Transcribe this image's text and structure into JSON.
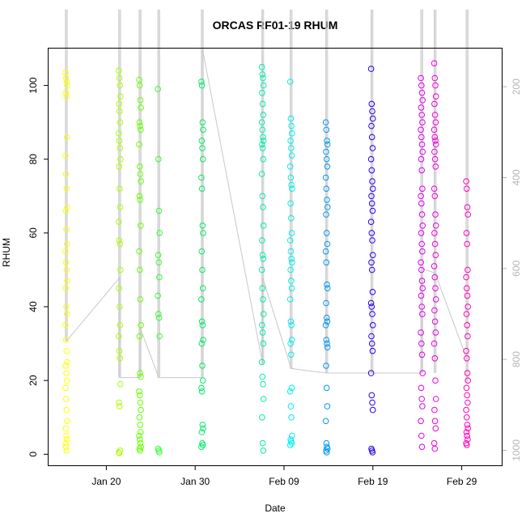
{
  "chart_data": {
    "type": "scatter",
    "title": "ORCAS RF01-19 RHUM",
    "xlabel": "Date",
    "ylabel": "RHUM",
    "ylim": [
      -3,
      110
    ],
    "y_ticks": [
      0,
      20,
      40,
      60,
      80,
      100
    ],
    "right_axis": {
      "ticks": [
        200,
        400,
        600,
        800,
        1000
      ],
      "range_top_to_bottom": [
        116,
        1033
      ],
      "line_color": "#c8c8c8"
    },
    "x_axis": {
      "range_days": [
        -6.5,
        44.5
      ],
      "ticks": [
        {
          "label": "Jan 20",
          "day": 0
        },
        {
          "label": "Jan 30",
          "day": 10
        },
        {
          "label": "Feb 09",
          "day": 20
        },
        {
          "label": "Feb 19",
          "day": 30
        },
        {
          "label": "Feb 29",
          "day": 40
        }
      ]
    },
    "series": [
      {
        "color": "#ffff00",
        "day": -4.5,
        "y": [
          103.5,
          102,
          101,
          100,
          98,
          97,
          86,
          81,
          76,
          72,
          67,
          66,
          61,
          57,
          55,
          52,
          50,
          47,
          45,
          40,
          38,
          35,
          31,
          28,
          25,
          24,
          22,
          20,
          18,
          15,
          12,
          9,
          7,
          5,
          4,
          3,
          2,
          1
        ],
        "press_top": 30,
        "press_bottom": 760
      },
      {
        "color": "#aaff00",
        "day": 1.5,
        "y": [
          104,
          102,
          100,
          97,
          95,
          93,
          90,
          87,
          85,
          83,
          80,
          78,
          72,
          67,
          63,
          58,
          57,
          50,
          45,
          40,
          35,
          32,
          28,
          26,
          19,
          14,
          13,
          1,
          0.5,
          0.3
        ],
        "press_top": 30,
        "press_bottom": 840
      },
      {
        "color": "#66ff00",
        "day": 3.8,
        "y": [
          101.5,
          100,
          96,
          94,
          90,
          89,
          88,
          84,
          78,
          76,
          74,
          70,
          69,
          62,
          55,
          50,
          42,
          35,
          32,
          22,
          21,
          17,
          16,
          14,
          12,
          10,
          8,
          6,
          5,
          4,
          3,
          2,
          1.5,
          1
        ],
        "press_top": 30,
        "press_bottom": 840
      },
      {
        "color": "#33ff33",
        "day": 5.9,
        "y": [
          99,
          80,
          66,
          60,
          54,
          52,
          48,
          43,
          38,
          37,
          32,
          1.5,
          1,
          0.5
        ],
        "press_top": 30,
        "press_bottom": 840
      },
      {
        "color": "#00ee66",
        "day": 10.8,
        "y": [
          101,
          100,
          90,
          88,
          85,
          83,
          80,
          75,
          72,
          62,
          60,
          55,
          50,
          45,
          42,
          36,
          35,
          31,
          30,
          24,
          20,
          18,
          17,
          8,
          7,
          6,
          3,
          2.5,
          2
        ],
        "press_top": 30,
        "press_bottom": 840
      },
      {
        "color": "#00eeaa",
        "day": 17.6,
        "y": [
          105,
          103,
          102,
          100,
          98,
          95,
          92,
          90,
          88,
          86,
          85,
          84,
          83,
          80,
          76,
          70,
          67,
          62,
          58,
          54,
          53,
          50,
          45,
          42,
          38,
          35,
          33,
          30,
          25,
          21,
          19,
          15,
          10,
          3,
          1
        ],
        "press_top": 30,
        "press_bottom": 810
      },
      {
        "color": "#00eeee",
        "day": 20.8,
        "y": [
          101,
          91,
          89,
          87,
          85,
          83,
          81,
          78,
          75,
          73,
          72,
          68,
          64,
          60,
          58,
          55,
          53,
          52,
          50,
          47,
          45,
          42,
          36,
          35,
          31,
          30,
          27,
          18,
          17,
          13,
          10,
          5,
          4,
          3.5,
          3,
          2.5
        ],
        "press_top": 30,
        "press_bottom": 820
      },
      {
        "color": "#0099ee",
        "day": 24.8,
        "y": [
          90,
          88,
          85,
          84,
          82,
          80,
          78,
          75,
          72,
          69,
          67,
          65,
          60,
          57,
          55,
          52,
          46,
          45,
          41,
          37,
          36,
          35,
          31,
          30,
          29,
          24,
          18,
          13,
          9,
          3,
          2,
          1.5,
          1,
          0.5
        ],
        "press_top": 30,
        "press_bottom": 830
      },
      {
        "color": "#2200ee",
        "day": 29.9,
        "y": [
          104.5,
          95,
          93,
          91,
          89,
          86,
          83,
          80,
          77,
          74,
          72,
          70,
          68,
          66,
          63,
          60,
          58,
          54,
          52,
          50,
          44,
          41,
          40,
          38,
          35,
          32,
          30,
          28,
          22,
          16,
          14,
          12,
          1.5,
          1,
          0.5
        ],
        "press_top": 30,
        "press_bottom": 830
      },
      {
        "color": "#dd00ee",
        "day": 35.5,
        "y": [
          102,
          100,
          98,
          96,
          94,
          92,
          90,
          88,
          86,
          84,
          82,
          80,
          77,
          72,
          70,
          68,
          65,
          62,
          60,
          57,
          55,
          52,
          50,
          47,
          45,
          43,
          40,
          38,
          33,
          30,
          27,
          22,
          18,
          15,
          13,
          9,
          5,
          2
        ],
        "press_top": 30,
        "press_bottom": 830
      },
      {
        "color": "#ee00dd",
        "day": 37.0,
        "y": [
          106,
          102,
          100,
          97,
          95,
          92,
          90,
          88,
          86,
          85,
          84,
          82,
          80,
          78,
          72,
          70,
          65,
          62,
          60,
          57,
          54,
          51,
          48,
          45,
          42,
          39,
          36,
          33,
          30,
          26,
          20,
          15,
          12,
          9,
          7,
          3,
          1.5
        ],
        "press_top": 30,
        "press_bottom": 830
      },
      {
        "color": "#ff00bb",
        "day": 40.6,
        "y": [
          74,
          72,
          67,
          65,
          60,
          57,
          50,
          48,
          45,
          43,
          40,
          38,
          35,
          32,
          28,
          26,
          22,
          20,
          18,
          16,
          14,
          12,
          10,
          8,
          7,
          6,
          5,
          4,
          3,
          2.5
        ],
        "press_top": 30,
        "press_bottom": 850
      }
    ],
    "pressure_path": [
      [
        -4.5,
        760
      ],
      [
        1.5,
        620
      ],
      [
        1.5,
        840
      ],
      [
        3.8,
        840
      ],
      [
        3.8,
        730
      ],
      [
        5.9,
        840
      ],
      [
        10.8,
        840
      ],
      [
        10.8,
        115
      ],
      [
        17.6,
        810
      ],
      [
        17.6,
        620
      ],
      [
        20.8,
        820
      ],
      [
        24.8,
        830
      ],
      [
        29.9,
        830
      ],
      [
        35.5,
        830
      ],
      [
        35.5,
        600
      ],
      [
        37.0,
        610
      ],
      [
        40.6,
        800
      ]
    ]
  }
}
